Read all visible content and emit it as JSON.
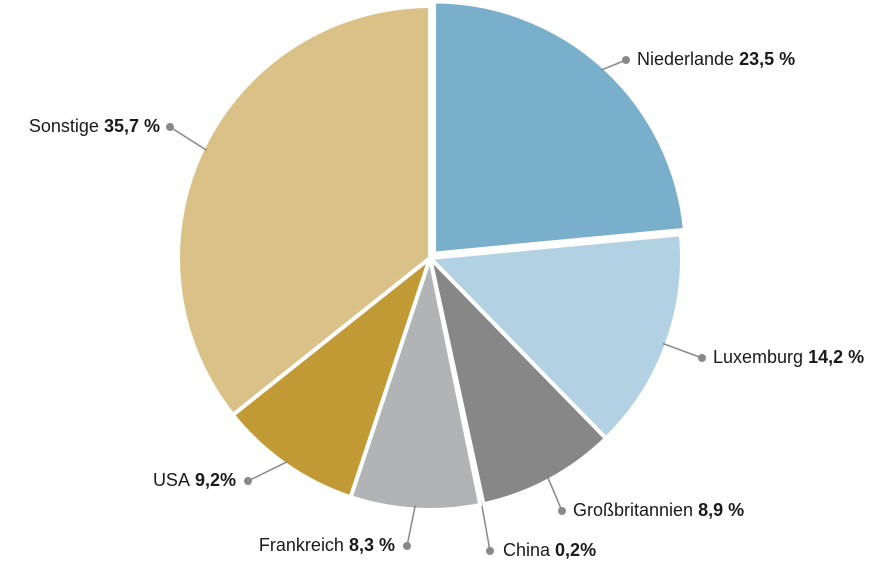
{
  "chart_data": {
    "type": "pie",
    "categories": [
      "Niederlande",
      "Luxemburg",
      "Großbritannien",
      "China",
      "Frankreich",
      "USA",
      "Sonstige"
    ],
    "values": [
      23.5,
      14.2,
      8.9,
      0.2,
      8.3,
      9.2,
      35.7
    ],
    "value_labels": [
      "23,5 %",
      "14,2 %",
      "8,9 %",
      "0,2%",
      "8,3 %",
      "9,2%",
      "35,7 %"
    ],
    "colors": [
      "#7aafcc",
      "#b2d1e3",
      "#878787",
      "#1a1a1a",
      "#b2b3b5",
      "#c29a35",
      "#dac187"
    ]
  }
}
